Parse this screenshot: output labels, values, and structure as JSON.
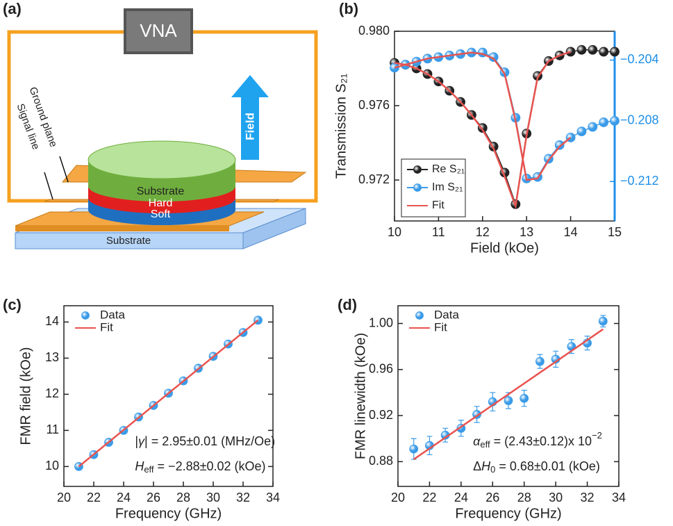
{
  "panel_labels": [
    "(a)",
    "(b)",
    "(c)",
    "(d)"
  ],
  "diagram": {
    "instrument": "VNA",
    "field": "Field",
    "ground_plane": "Ground plane",
    "signal_line": "Signal line",
    "layers": [
      "Substrate",
      "Hard",
      "Soft"
    ],
    "base": "Substrate"
  },
  "chart_data": [
    {
      "type": "line",
      "xlabel": "Field (kOe)",
      "ylabel": "Transmission S₂₁",
      "x": [
        10,
        10.25,
        10.5,
        10.75,
        11,
        11.25,
        11.5,
        11.75,
        12,
        12.25,
        12.5,
        12.75,
        13,
        13.25,
        13.5,
        13.75,
        14,
        14.25,
        14.5,
        14.75,
        15
      ],
      "xlim": [
        10,
        15
      ],
      "xticks": [
        10,
        11,
        12,
        13,
        14,
        15
      ],
      "ylim": [
        0.9698,
        0.98
      ],
      "yticks": [
        0.972,
        0.976,
        {
          "value": 0.98,
          "label": "0.980"
        }
      ],
      "y2lim": [
        -0.2146,
        -0.2021
      ],
      "y2ticks": [
        {
          "value": -0.212,
          "label": "−0.212"
        },
        {
          "value": -0.208,
          "label": "−0.208"
        },
        {
          "value": -0.204,
          "label": "−0.204"
        }
      ],
      "y2color": "#1e8fe8",
      "legend": "lower left",
      "legend_frame": true,
      "series": [
        {
          "name": "Re S₂₁",
          "color": "#222222",
          "mode": "line+markers",
          "values": [
            0.9783,
            0.9782,
            0.978,
            0.9777,
            0.9773,
            0.9768,
            0.9762,
            0.9755,
            0.9748,
            0.9738,
            0.9724,
            0.9707,
            0.9745,
            0.9776,
            0.9784,
            0.9787,
            0.9789,
            0.979,
            0.979,
            0.9789,
            0.9789
          ]
        },
        {
          "name": "Im S₂₁",
          "color": "#3a9be8",
          "mode": "line+markers",
          "axis": "y2",
          "values": [
            -0.2045,
            -0.2043,
            -0.2041,
            -0.2039,
            -0.2038,
            -0.2037,
            -0.2036,
            -0.2035,
            -0.2035,
            -0.2038,
            -0.2048,
            -0.2078,
            -0.2118,
            -0.2117,
            -0.2105,
            -0.2096,
            -0.2091,
            -0.2087,
            -0.2084,
            -0.2081,
            -0.208
          ]
        },
        {
          "name": "Fit",
          "color": "#e8534f",
          "mode": "line",
          "values": [
            0.9783,
            0.9782,
            0.978,
            0.9777,
            0.9773,
            0.9768,
            0.9762,
            0.9755,
            0.9747,
            0.9737,
            0.9722,
            0.9706,
            0.9744,
            0.9775,
            0.9784,
            0.9787,
            0.9789,
            null,
            null,
            null,
            null
          ]
        },
        {
          "color": "#e8534f",
          "mode": "line",
          "axis": "y2",
          "values": [
            -0.2045,
            -0.2043,
            -0.2041,
            -0.2039,
            -0.2038,
            -0.2037,
            -0.2036,
            -0.2035,
            -0.2036,
            -0.2039,
            -0.2049,
            -0.208,
            -0.2119,
            -0.2118,
            -0.2106,
            -0.2097,
            -0.2091,
            null,
            null,
            null,
            null
          ]
        }
      ]
    },
    {
      "type": "scatter",
      "xlabel": "Frequency (GHz)",
      "ylabel": "FMR field (kOe)",
      "x": [
        21,
        22,
        23,
        24,
        25,
        26,
        27,
        28,
        29,
        30,
        31,
        32,
        33
      ],
      "xlim": [
        20,
        34
      ],
      "xticks": [
        20,
        22,
        24,
        26,
        28,
        30,
        32,
        34
      ],
      "ylim": [
        9.45,
        14.45
      ],
      "yticks": [
        10,
        11,
        12,
        13,
        14
      ],
      "legend": "upper left",
      "series": [
        {
          "name": "Data",
          "color": "#3a9be8",
          "mode": "markers",
          "values": [
            10.0,
            10.33,
            10.67,
            11.0,
            11.37,
            11.69,
            12.03,
            12.37,
            12.72,
            13.05,
            13.39,
            13.71,
            14.05
          ]
        },
        {
          "name": "Fit",
          "color": "#e8534f",
          "mode": "line",
          "x": [
            21,
            33
          ],
          "values": [
            10.0,
            14.05
          ]
        }
      ],
      "annotations": [
        [
          {
            "text": "|"
          },
          {
            "text": "γ",
            "italic": true
          },
          {
            "text": "| = 2.95±0.01 (MHz/Oe)"
          }
        ],
        [
          {
            "text": "H",
            "italic": true
          },
          {
            "text": "eff",
            "sub": true
          },
          {
            "text": " = −2.88±0.02 (kOe)"
          }
        ]
      ]
    },
    {
      "type": "scatter",
      "xlabel": "Frequency (GHz)",
      "ylabel": "FMR linewidth (kOe)",
      "x": [
        21,
        22,
        23,
        24,
        25,
        26,
        27,
        28,
        29,
        30,
        31,
        32,
        33
      ],
      "xlim": [
        20,
        34
      ],
      "xticks": [
        20,
        22,
        24,
        26,
        28,
        30,
        32,
        34
      ],
      "ylim": [
        0.8585,
        1.0154
      ],
      "yticks": [
        0.88,
        0.92,
        0.96,
        {
          "value": 1.0,
          "label": "1.00"
        }
      ],
      "legend": "upper left",
      "series": [
        {
          "name": "Data",
          "color": "#3a9be8",
          "mode": "markers",
          "values": [
            0.891,
            0.894,
            0.903,
            0.909,
            0.921,
            0.932,
            0.933,
            0.935,
            0.967,
            0.969,
            0.98,
            0.983,
            1.002
          ],
          "errors": [
            0.009,
            0.008,
            0.006,
            0.007,
            0.007,
            0.008,
            0.007,
            0.007,
            0.006,
            0.007,
            0.006,
            0.006,
            0.005
          ]
        },
        {
          "name": "Fit",
          "color": "#e8534f",
          "mode": "line",
          "x": [
            21,
            33
          ],
          "values": [
            0.882,
            0.995
          ]
        }
      ],
      "annotations": [
        [
          {
            "text": "α",
            "italic": true
          },
          {
            "text": "eff",
            "sub": true
          },
          {
            "text": " = (2.43±0.12)x 10"
          },
          {
            "text": "−2",
            "sup": true
          }
        ],
        [
          {
            "text": "Δ"
          },
          {
            "text": "H",
            "italic": true
          },
          {
            "text": "0",
            "sub": true
          },
          {
            "text": " = 0.68±0.01 (kOe)"
          }
        ]
      ]
    }
  ]
}
